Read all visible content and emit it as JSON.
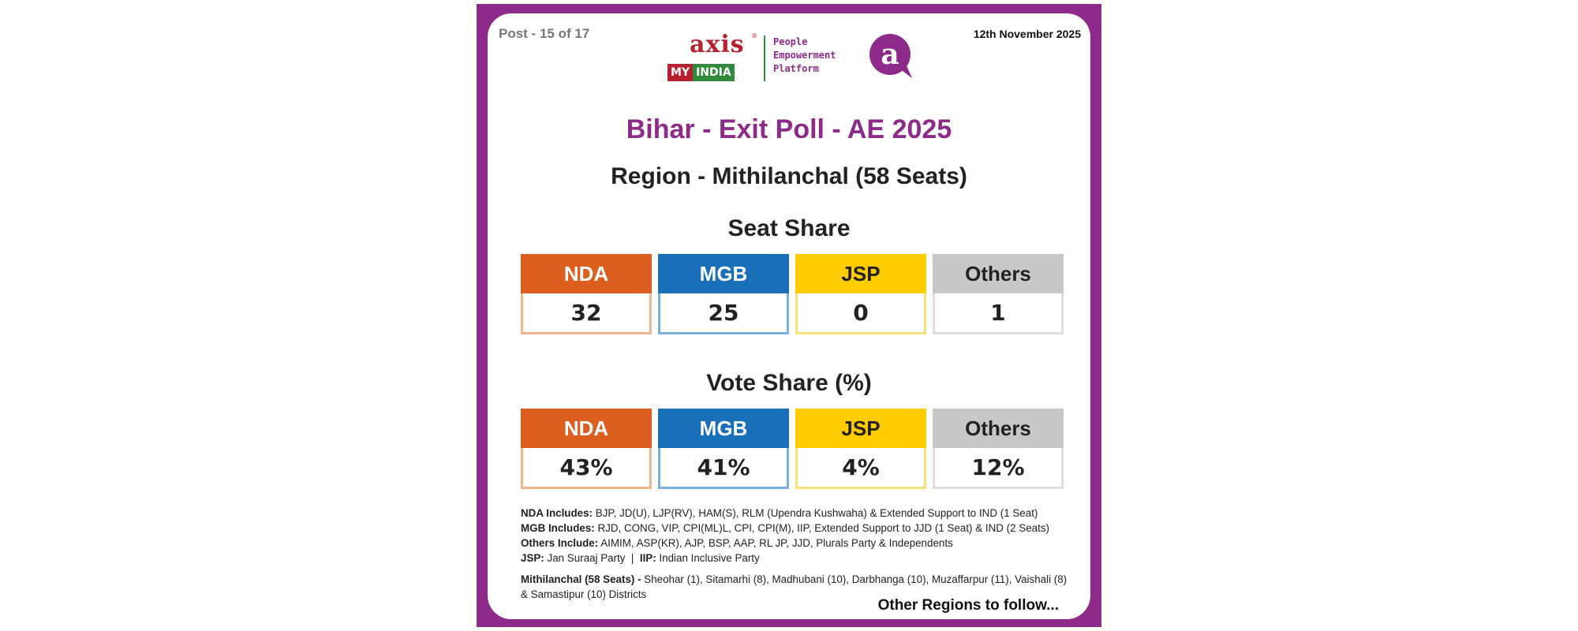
{
  "header": {
    "post": "Post - 15 of 17",
    "date": "12th November 2025",
    "logo": {
      "axis": "axis",
      "reg": "®",
      "my": "MY",
      "india": "INDIA",
      "tagline": [
        "People",
        "Empowerment",
        "Platform"
      ],
      "badge_letter": "a"
    }
  },
  "title": "Bihar - Exit Poll - AE 2025",
  "region": "Region - Mithilanchal (58 Seats)",
  "seat_share": {
    "title": "Seat Share",
    "tiles": [
      {
        "label": "NDA",
        "value": "32",
        "color": "#dc5f1f",
        "border": "#f0b68e",
        "text_color": "#ffffff"
      },
      {
        "label": "MGB",
        "value": "25",
        "color": "#1a6fb9",
        "border": "#7ab0db",
        "text_color": "#ffffff"
      },
      {
        "label": "JSP",
        "value": "0",
        "color": "#ffcc00",
        "border": "#f7e27a",
        "text_color": "#222222"
      },
      {
        "label": "Others",
        "value": "1",
        "color": "#c8c8c8",
        "border": "#dddddd",
        "text_color": "#222222"
      }
    ]
  },
  "vote_share": {
    "title": "Vote Share (%)",
    "tiles": [
      {
        "label": "NDA",
        "value": "43%",
        "color": "#dc5f1f",
        "border": "#f0b68e",
        "text_color": "#ffffff"
      },
      {
        "label": "MGB",
        "value": "41%",
        "color": "#1a6fb9",
        "border": "#7ab0db",
        "text_color": "#ffffff"
      },
      {
        "label": "JSP",
        "value": "4%",
        "color": "#ffcc00",
        "border": "#f7e27a",
        "text_color": "#222222"
      },
      {
        "label": "Others",
        "value": "12%",
        "color": "#c8c8c8",
        "border": "#dddddd",
        "text_color": "#222222"
      }
    ]
  },
  "notes": {
    "nda_label": "NDA Includes:",
    "nda_text": " BJP, JD(U), LJP(RV), HAM(S), RLM (Upendra Kushwaha) & Extended Support to IND (1 Seat)",
    "mgb_label": "MGB Includes:",
    "mgb_text": " RJD, CONG, VIP, CPI(ML)L, CPI, CPI(M), IIP, Extended Support to JJD (1 Seat) & IND (2 Seats)",
    "others_label": "Others Include:",
    "others_text": " AIMIM, ASP(KR), AJP, BSP, AAP, RL JP, JJD, Plurals Party & Independents",
    "jsp_label": "JSP:",
    "jsp_text": " Jan Suraaj Party  |  ",
    "iip_label": "IIP:",
    "iip_text": " Indian Inclusive Party",
    "mith_label": "Mithilanchal (58 Seats) -",
    "mith_text": " Sheohar (1), Sitamarhi (8), Madhubani (10), Darbhanga (10), Muzaffarpur (11), Vaishali (8) & Samastipur (10) Districts"
  },
  "footer": "Other Regions to follow..."
}
